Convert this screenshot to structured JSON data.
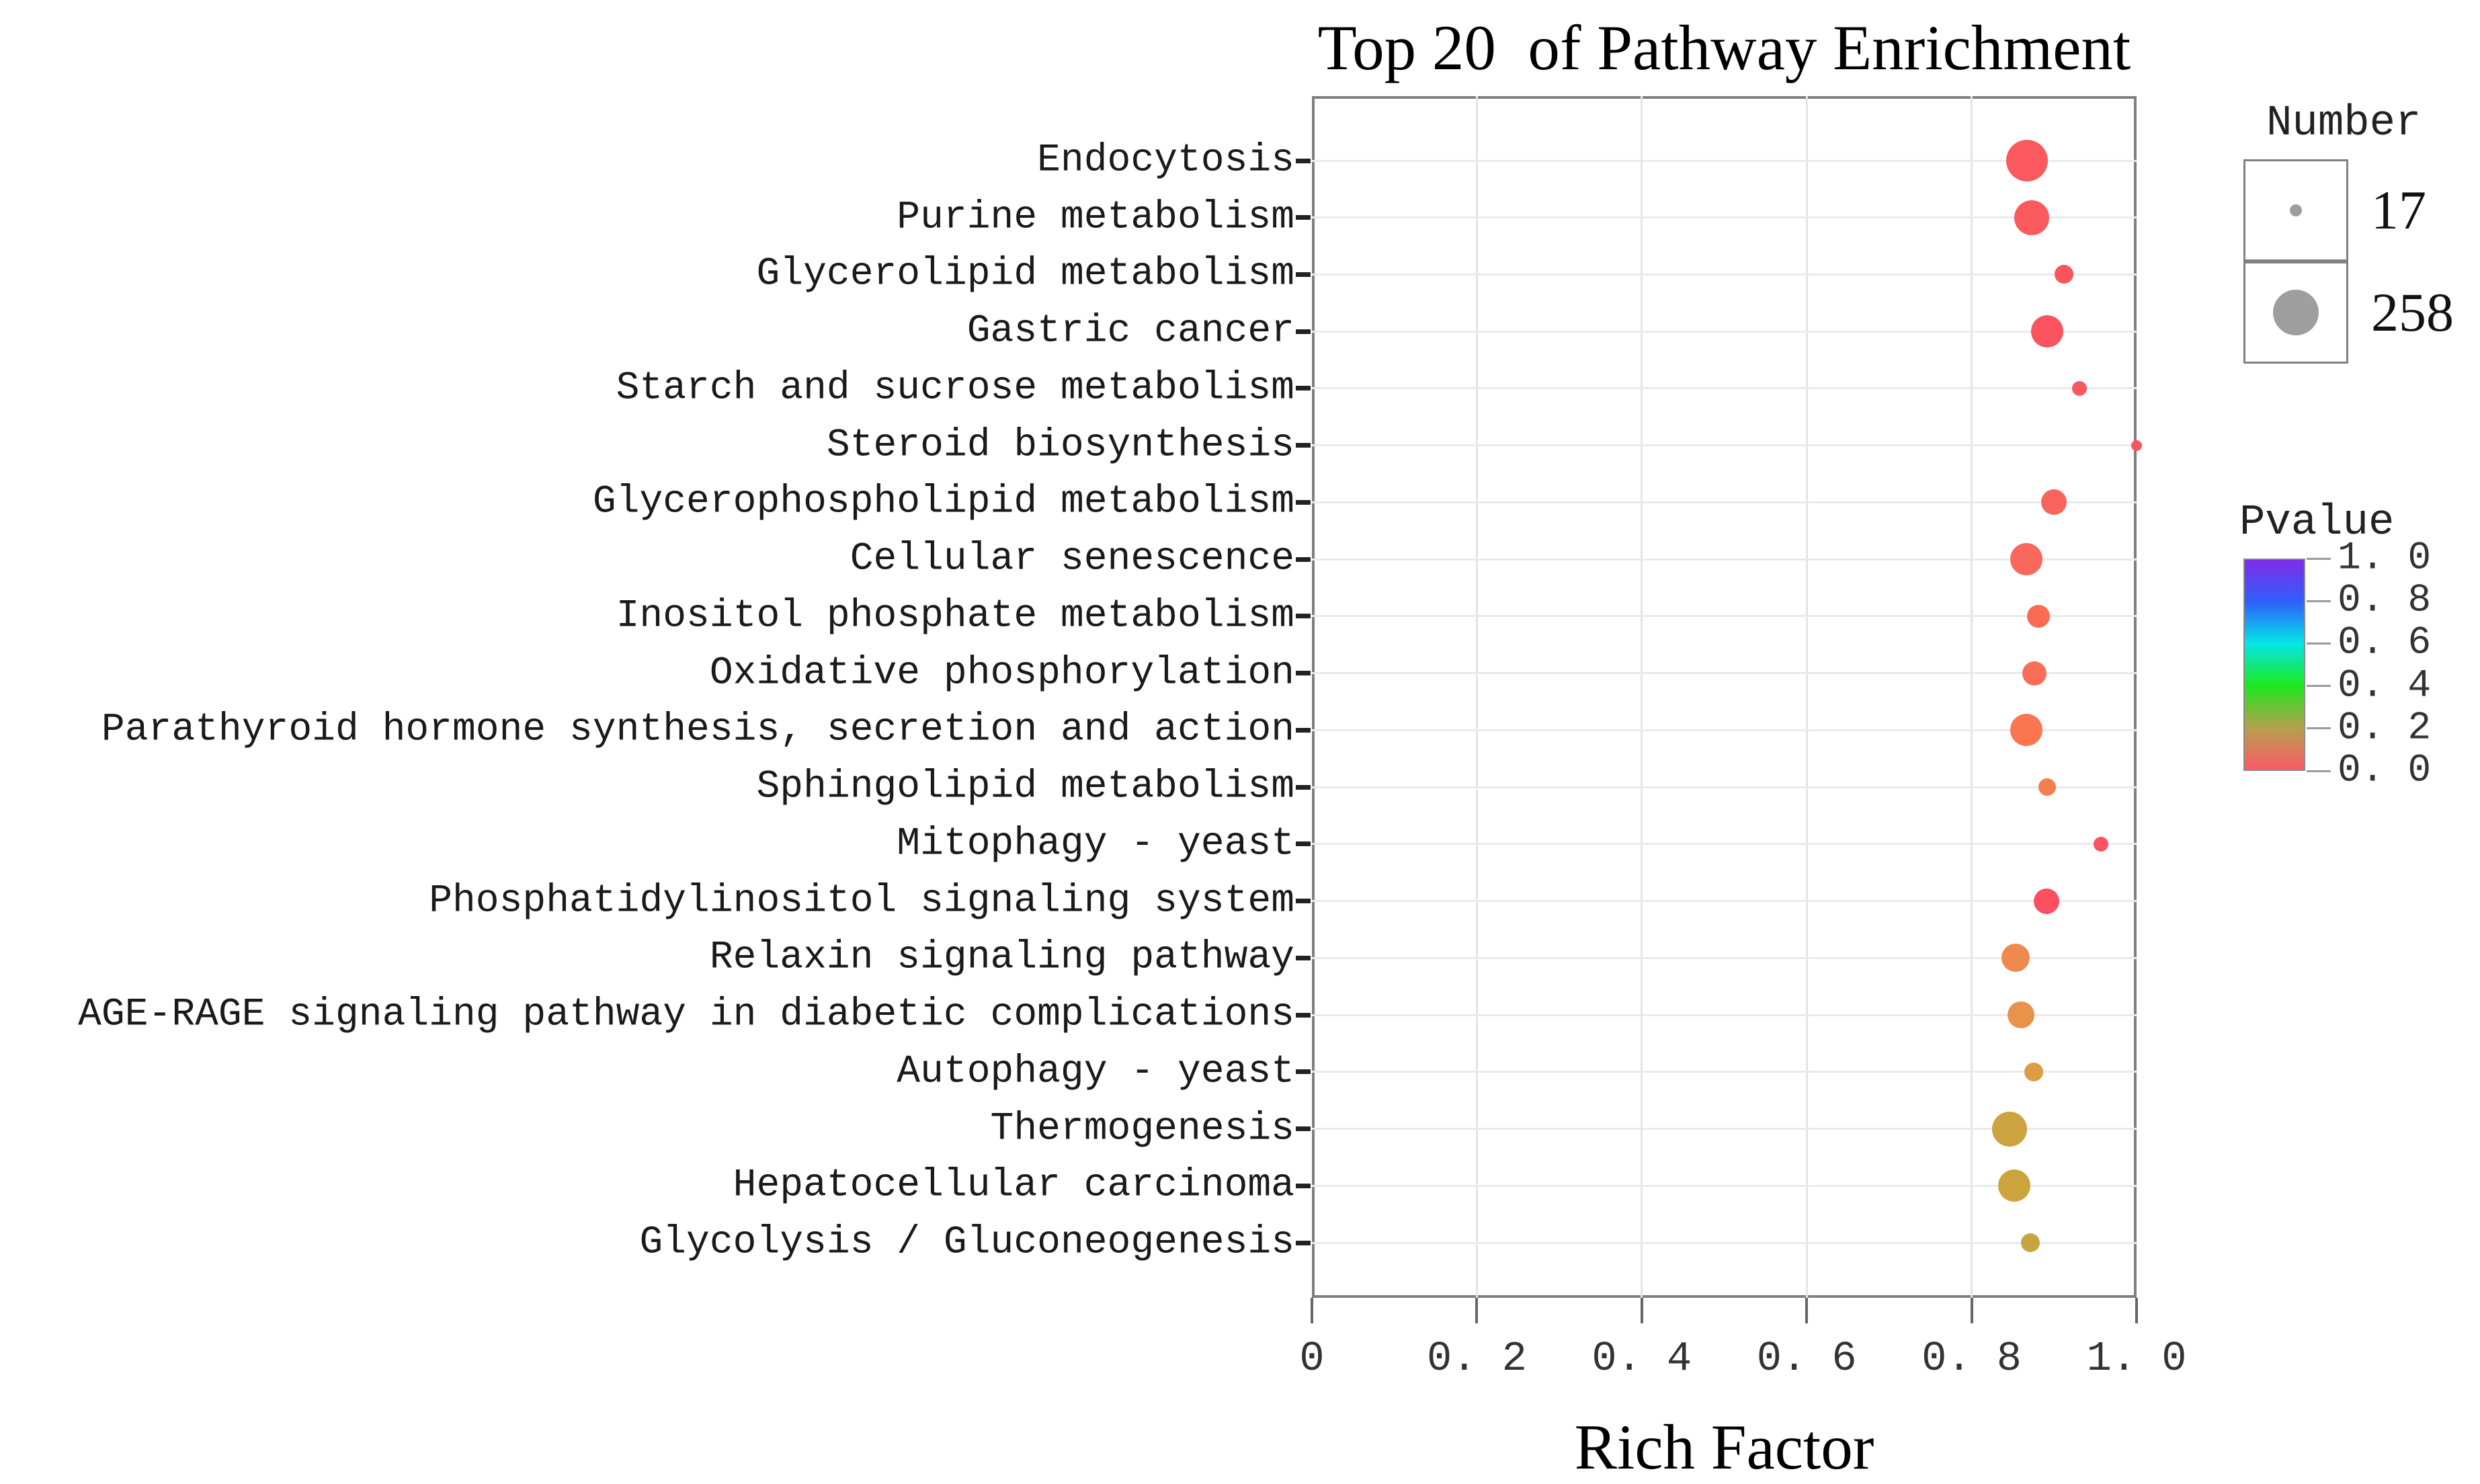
{
  "page": {
    "background": "#ffffff"
  },
  "chart_data": {
    "type": "scatter",
    "title": "Top 20  of Pathway Enrichment",
    "xlabel": "Rich Factor",
    "x_axis": {
      "min": 0,
      "max": 1.0,
      "tick_values": [
        0,
        0.2,
        0.4,
        0.6,
        0.8,
        1.0
      ],
      "tick_labels": [
        "0",
        "0. 2",
        "0. 4",
        "0. 6",
        "0. 8",
        "1. 0"
      ]
    },
    "grid": {
      "vertical_at": [
        0.2,
        0.4,
        0.6,
        0.8
      ],
      "horizontal": "one line per pathway row"
    },
    "pathways": [
      {
        "label": "Endocytosis",
        "rich_factor": 0.867,
        "number_estimated": 258,
        "pvalue_color": "#FA5A5E",
        "dot_radius_px": 31
      },
      {
        "label": "Purine metabolism",
        "rich_factor": 0.873,
        "number_estimated": 180,
        "pvalue_color": "#FA5A5E",
        "dot_radius_px": 26
      },
      {
        "label": "Glycerolipid metabolism",
        "rich_factor": 0.912,
        "number_estimated": 52,
        "pvalue_color": "#FA555C",
        "dot_radius_px": 14
      },
      {
        "label": "Gastric cancer",
        "rich_factor": 0.892,
        "number_estimated": 150,
        "pvalue_color": "#FB545E",
        "dot_radius_px": 24
      },
      {
        "label": "Starch and sucrose metabolism",
        "rich_factor": 0.931,
        "number_estimated": 32,
        "pvalue_color": "#FA5760",
        "dot_radius_px": 11
      },
      {
        "label": "Steroid biosynthesis",
        "rich_factor": 1.0,
        "number_estimated": 17,
        "pvalue_color": "#FB5560",
        "dot_radius_px": 8
      },
      {
        "label": "Glycerophospholipid metabolism",
        "rich_factor": 0.9,
        "number_estimated": 95,
        "pvalue_color": "#FA635C",
        "dot_radius_px": 19
      },
      {
        "label": "Cellular senescence",
        "rich_factor": 0.866,
        "number_estimated": 150,
        "pvalue_color": "#FA675C",
        "dot_radius_px": 24
      },
      {
        "label": "Inositol phosphate metabolism",
        "rich_factor": 0.881,
        "number_estimated": 75,
        "pvalue_color": "#F96B55",
        "dot_radius_px": 17
      },
      {
        "label": "Oxidative phosphorylation",
        "rich_factor": 0.876,
        "number_estimated": 85,
        "pvalue_color": "#F96E57",
        "dot_radius_px": 18
      },
      {
        "label": "Parathyroid hormone synthesis, secretion and action",
        "rich_factor": 0.866,
        "number_estimated": 150,
        "pvalue_color": "#F9764F",
        "dot_radius_px": 24
      },
      {
        "label": "Sphingolipid metabolism",
        "rich_factor": 0.892,
        "number_estimated": 45,
        "pvalue_color": "#F57E51",
        "dot_radius_px": 13
      },
      {
        "label": "Mitophagy - yeast",
        "rich_factor": 0.957,
        "number_estimated": 32,
        "pvalue_color": "#FB5363",
        "dot_radius_px": 11
      },
      {
        "label": "Phosphatidylinositol signaling system",
        "rich_factor": 0.891,
        "number_estimated": 95,
        "pvalue_color": "#FC4F60",
        "dot_radius_px": 19
      },
      {
        "label": "Relaxin signaling pathway",
        "rich_factor": 0.853,
        "number_estimated": 115,
        "pvalue_color": "#EF8A4E",
        "dot_radius_px": 21
      },
      {
        "label": "AGE-RAGE signaling pathway in diabetic complications",
        "rich_factor": 0.86,
        "number_estimated": 105,
        "pvalue_color": "#E8924C",
        "dot_radius_px": 20
      },
      {
        "label": "Autophagy - yeast",
        "rich_factor": 0.875,
        "number_estimated": 52,
        "pvalue_color": "#DD9C43",
        "dot_radius_px": 14
      },
      {
        "label": "Thermogenesis",
        "rich_factor": 0.846,
        "number_estimated": 180,
        "pvalue_color": "#CDA33F",
        "dot_radius_px": 26
      },
      {
        "label": "Hepatocellular carcinoma",
        "rich_factor": 0.852,
        "number_estimated": 150,
        "pvalue_color": "#CCA43E",
        "dot_radius_px": 24
      },
      {
        "label": "Glycolysis / Gluconeogenesis",
        "rich_factor": 0.871,
        "number_estimated": 52,
        "pvalue_color": "#C6A53D",
        "dot_radius_px": 14
      }
    ],
    "legend_number": {
      "title": "Number",
      "dot_color": "#9E9E9E",
      "items": [
        {
          "value": "17",
          "dot_radius_px": 9
        },
        {
          "value": "258",
          "dot_radius_px": 34
        }
      ]
    },
    "legend_pvalue": {
      "title": "Pvalue",
      "tick_labels": [
        "1. 0",
        "0. 8",
        "0. 6",
        "0. 4",
        "0. 2",
        "0. 0"
      ],
      "gradient_stops": [
        {
          "pos": 0.0,
          "color": "#7F2CE8"
        },
        {
          "pos": 0.2,
          "color": "#2F5FFB"
        },
        {
          "pos": 0.4,
          "color": "#04E7E7"
        },
        {
          "pos": 0.6,
          "color": "#1DE81D"
        },
        {
          "pos": 0.8,
          "color": "#B5A04E"
        },
        {
          "pos": 1.0,
          "color": "#FB5A68"
        }
      ]
    }
  }
}
